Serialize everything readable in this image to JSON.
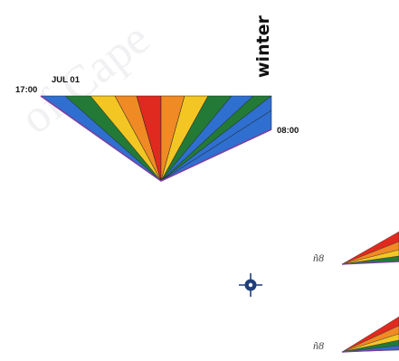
{
  "watermark": {
    "text": "of Cape"
  },
  "sun_fan": {
    "season_label": "winter",
    "date_label": "JUL 01",
    "start_time_label": "17:00",
    "end_time_label": "08:00",
    "wedge_colors": [
      "#2f6fcf",
      "#237a36",
      "#f3c623",
      "#f08a24",
      "#e02a1f",
      "#f08a24",
      "#f3c623",
      "#237a36",
      "#2f6fcf"
    ],
    "outline_color": "#7b3fa0"
  },
  "small_fans": {
    "icon_label": "ñ8",
    "rows": [
      {
        "colors": [
          "#e02a1f",
          "#f08a24",
          "#f3c623",
          "#237a36"
        ]
      },
      {
        "colors": [
          "#e02a1f",
          "#f08a24",
          "#f3c623",
          "#237a36",
          "#2f6fcf"
        ]
      }
    ]
  },
  "compass_icon": "compass-crosshair-icon"
}
